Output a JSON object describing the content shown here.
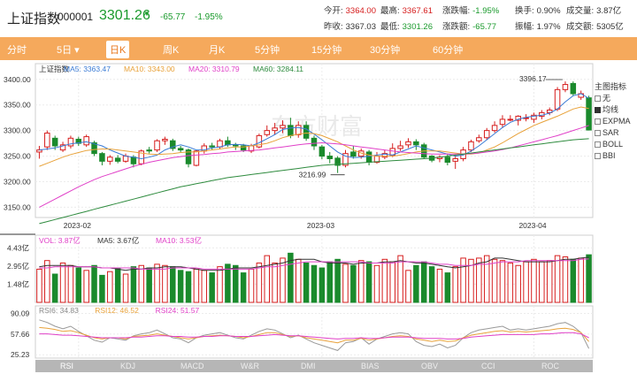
{
  "header": {
    "name": "上证指数",
    "code": "000001",
    "price": "3301.26",
    "change": "-65.77",
    "change_pct": "-1.95%",
    "stats_row1": [
      {
        "k": "今开:",
        "v": "3364.00",
        "c": "red"
      },
      {
        "k": "最高:",
        "v": "3367.61",
        "c": "red"
      },
      {
        "k": "涨跌幅:",
        "v": "-1.95%",
        "c": "green"
      },
      {
        "k": "换手:",
        "v": "0.90%",
        "c": "dark"
      },
      {
        "k": "成交量:",
        "v": "3.87亿",
        "c": "dark"
      }
    ],
    "stats_row2": [
      {
        "k": "昨收:",
        "v": "3367.03",
        "c": "dark"
      },
      {
        "k": "最低:",
        "v": "3301.26",
        "c": "green"
      },
      {
        "k": "涨跌额:",
        "v": "-65.77",
        "c": "green"
      },
      {
        "k": "振幅:",
        "v": "1.97%",
        "c": "dark"
      },
      {
        "k": "成交额:",
        "v": "5305亿",
        "c": "dark"
      }
    ]
  },
  "tabs": [
    "分时",
    "5日 ▾",
    "日K",
    "周K",
    "月K",
    "5分钟",
    "15分钟",
    "30分钟",
    "60分钟"
  ],
  "active_tab": 2,
  "main_legend": [
    {
      "t": "上证指数",
      "c": "#333333"
    },
    {
      "t": "MA5: 3363.47",
      "c": "#3a7bd5"
    },
    {
      "t": "MA10: 3343.00",
      "c": "#e8a23a"
    },
    {
      "t": "MA20: 3310.79",
      "c": "#e040c8"
    },
    {
      "t": "MA60: 3284.11",
      "c": "#2e8b3e"
    }
  ],
  "vol_legend": [
    {
      "t": "VOL: 3.87亿",
      "c": "#e040c8"
    },
    {
      "t": "MA5: 3.67亿",
      "c": "#333333"
    },
    {
      "t": "MA10: 3.53亿",
      "c": "#e040c8"
    }
  ],
  "rsi_legend": [
    {
      "t": "RSI6: 34.83",
      "c": "#888888"
    },
    {
      "t": "RSI12: 46.52",
      "c": "#e8a23a"
    },
    {
      "t": "RSI24: 51.57",
      "c": "#e040c8"
    }
  ],
  "price_ticks": [
    "3400.00",
    "3350.00",
    "3300.00",
    "3250.00",
    "3200.00",
    "3150.00"
  ],
  "vol_ticks": [
    "4.43亿",
    "2.95亿",
    "1.48亿"
  ],
  "rsi_ticks": [
    "90.09",
    "57.66",
    "25.23"
  ],
  "date_ticks": [
    "2023-02",
    "2023-03",
    "2023-04"
  ],
  "annotations": {
    "high": "3396.17",
    "low": "3216.99"
  },
  "watermark": "东方财富",
  "side_panel": {
    "title": "主图指标",
    "items": [
      {
        "label": "无",
        "on": false
      },
      {
        "label": "均线",
        "on": true
      },
      {
        "label": "EXPMA",
        "on": false
      },
      {
        "label": "SAR",
        "on": false
      },
      {
        "label": "BOLL",
        "on": false
      },
      {
        "label": "BBI",
        "on": false
      }
    ]
  },
  "indicator_tabs": [
    "RSI",
    "KDJ",
    "MACD",
    "W&R",
    "DMI",
    "BIAS",
    "OBV",
    "CCI",
    "ROC"
  ],
  "colors": {
    "up": "#d61e1e",
    "down": "#1a8a2c",
    "accent": "#f5a95c"
  },
  "chart_data": {
    "type": "candlestick",
    "ylim": [
      3130,
      3410
    ],
    "candles": [
      [
        3258,
        3262,
        3245,
        3270
      ],
      [
        3268,
        3295,
        3262,
        3300
      ],
      [
        3285,
        3270,
        3262,
        3290
      ],
      [
        3262,
        3272,
        3258,
        3278
      ],
      [
        3270,
        3285,
        3265,
        3290
      ],
      [
        3283,
        3275,
        3270,
        3288
      ],
      [
        3272,
        3288,
        3268,
        3292
      ],
      [
        3276,
        3255,
        3250,
        3280
      ],
      [
        3255,
        3240,
        3232,
        3258
      ],
      [
        3240,
        3248,
        3233,
        3252
      ],
      [
        3246,
        3240,
        3236,
        3252
      ],
      [
        3240,
        3250,
        3237,
        3255
      ],
      [
        3248,
        3235,
        3228,
        3252
      ],
      [
        3235,
        3260,
        3232,
        3263
      ],
      [
        3262,
        3260,
        3255,
        3268
      ],
      [
        3262,
        3280,
        3258,
        3283
      ],
      [
        3280,
        3283,
        3272,
        3288
      ],
      [
        3280,
        3265,
        3260,
        3284
      ],
      [
        3265,
        3262,
        3258,
        3270
      ],
      [
        3262,
        3235,
        3228,
        3265
      ],
      [
        3232,
        3260,
        3230,
        3262
      ],
      [
        3260,
        3270,
        3255,
        3275
      ],
      [
        3270,
        3268,
        3262,
        3276
      ],
      [
        3268,
        3280,
        3263,
        3284
      ],
      [
        3280,
        3272,
        3268,
        3288
      ],
      [
        3272,
        3270,
        3262,
        3276
      ],
      [
        3270,
        3262,
        3258,
        3274
      ],
      [
        3260,
        3270,
        3256,
        3274
      ],
      [
        3268,
        3290,
        3265,
        3294
      ],
      [
        3292,
        3300,
        3288,
        3310
      ],
      [
        3300,
        3305,
        3292,
        3315
      ],
      [
        3305,
        3310,
        3295,
        3320
      ],
      [
        3310,
        3290,
        3285,
        3325
      ],
      [
        3292,
        3310,
        3286,
        3318
      ],
      [
        3310,
        3285,
        3280,
        3318
      ],
      [
        3285,
        3270,
        3262,
        3290
      ],
      [
        3268,
        3250,
        3244,
        3272
      ],
      [
        3250,
        3245,
        3236,
        3258
      ],
      [
        3246,
        3232,
        3217,
        3250
      ],
      [
        3232,
        3255,
        3228,
        3262
      ],
      [
        3258,
        3250,
        3245,
        3270
      ],
      [
        3250,
        3260,
        3245,
        3265
      ],
      [
        3258,
        3238,
        3232,
        3262
      ],
      [
        3238,
        3250,
        3235,
        3258
      ],
      [
        3248,
        3255,
        3244,
        3262
      ],
      [
        3252,
        3265,
        3248,
        3275
      ],
      [
        3265,
        3270,
        3260,
        3280
      ],
      [
        3272,
        3278,
        3266,
        3285
      ],
      [
        3278,
        3272,
        3262,
        3283
      ],
      [
        3272,
        3248,
        3245,
        3276
      ],
      [
        3250,
        3242,
        3238,
        3252
      ],
      [
        3245,
        3248,
        3238,
        3252
      ],
      [
        3248,
        3238,
        3232,
        3255
      ],
      [
        3240,
        3245,
        3225,
        3252
      ],
      [
        3245,
        3262,
        3240,
        3268
      ],
      [
        3262,
        3278,
        3258,
        3282
      ],
      [
        3280,
        3286,
        3276,
        3292
      ],
      [
        3286,
        3300,
        3282,
        3305
      ],
      [
        3300,
        3310,
        3296,
        3318
      ],
      [
        3312,
        3322,
        3305,
        3330
      ],
      [
        3322,
        3322,
        3318,
        3330
      ],
      [
        3320,
        3328,
        3310,
        3330
      ],
      [
        3325,
        3325,
        3318,
        3332
      ],
      [
        3322,
        3330,
        3315,
        3335
      ],
      [
        3328,
        3335,
        3322,
        3340
      ],
      [
        3335,
        3340,
        3330,
        3345
      ],
      [
        3342,
        3380,
        3338,
        3385
      ],
      [
        3380,
        3390,
        3375,
        3396
      ],
      [
        3392,
        3372,
        3368,
        3396
      ],
      [
        3365,
        3372,
        3360,
        3378
      ],
      [
        3364,
        3301,
        3301,
        3368
      ]
    ],
    "ma5": [
      3262,
      3264,
      3266,
      3270,
      3274,
      3276,
      3278,
      3274,
      3270,
      3262,
      3256,
      3250,
      3248,
      3245,
      3248,
      3252,
      3262,
      3268,
      3272,
      3268,
      3262,
      3262,
      3266,
      3268,
      3272,
      3273,
      3272,
      3270,
      3276,
      3284,
      3292,
      3302,
      3305,
      3306,
      3303,
      3293,
      3282,
      3270,
      3258,
      3250,
      3247,
      3248,
      3250,
      3252,
      3254,
      3252,
      3258,
      3264,
      3270,
      3266,
      3262,
      3258,
      3254,
      3250,
      3252,
      3260,
      3270,
      3282,
      3294,
      3306,
      3316,
      3322,
      3326,
      3328,
      3330,
      3334,
      3342,
      3356,
      3368,
      3372,
      3363
    ],
    "ma10": [
      3230,
      3236,
      3242,
      3248,
      3253,
      3257,
      3261,
      3263,
      3264,
      3264,
      3262,
      3260,
      3258,
      3256,
      3254,
      3253,
      3254,
      3255,
      3257,
      3258,
      3258,
      3260,
      3262,
      3264,
      3266,
      3268,
      3268,
      3270,
      3272,
      3275,
      3280,
      3286,
      3290,
      3293,
      3295,
      3294,
      3290,
      3284,
      3278,
      3270,
      3262,
      3256,
      3252,
      3250,
      3250,
      3250,
      3252,
      3255,
      3258,
      3260,
      3260,
      3260,
      3258,
      3256,
      3254,
      3254,
      3256,
      3262,
      3268,
      3276,
      3285,
      3294,
      3302,
      3310,
      3316,
      3322,
      3328,
      3335,
      3342,
      3346,
      3343
    ],
    "ma20": [
      3150,
      3158,
      3166,
      3174,
      3182,
      3190,
      3197,
      3204,
      3210,
      3215,
      3220,
      3225,
      3230,
      3234,
      3238,
      3241,
      3244,
      3247,
      3249,
      3251,
      3252,
      3253,
      3255,
      3256,
      3258,
      3259,
      3260,
      3261,
      3262,
      3264,
      3266,
      3268,
      3270,
      3272,
      3274,
      3275,
      3276,
      3275,
      3274,
      3272,
      3270,
      3268,
      3266,
      3264,
      3262,
      3260,
      3258,
      3257,
      3256,
      3255,
      3254,
      3254,
      3254,
      3254,
      3254,
      3255,
      3256,
      3258,
      3260,
      3263,
      3266,
      3270,
      3274,
      3278,
      3282,
      3286,
      3290,
      3295,
      3300,
      3305,
      3310
    ],
    "ma60": [
      3118,
      3122,
      3126,
      3130,
      3134,
      3138,
      3142,
      3146,
      3150,
      3154,
      3158,
      3162,
      3166,
      3170,
      3174,
      3178,
      3182,
      3186,
      3190,
      3193,
      3196,
      3199,
      3202,
      3205,
      3208,
      3210,
      3212,
      3214,
      3216,
      3218,
      3220,
      3222,
      3224,
      3226,
      3228,
      3230,
      3232,
      3233,
      3234,
      3235,
      3236,
      3237,
      3238,
      3239,
      3240,
      3241,
      3242,
      3243,
      3244,
      3245,
      3246,
      3248,
      3250,
      3252,
      3254,
      3256,
      3258,
      3260,
      3262,
      3264,
      3266,
      3268,
      3270,
      3272,
      3274,
      3276,
      3278,
      3280,
      3282,
      3283,
      3284
    ],
    "volume_ylim": [
      0,
      4.6
    ],
    "volume": [
      2.7,
      3.4,
      2.3,
      3.2,
      3.0,
      2.8,
      2.6,
      3.0,
      2.2,
      2.5,
      2.8,
      2.3,
      2.9,
      3.0,
      2.8,
      3.1,
      3.0,
      2.9,
      2.6,
      2.5,
      2.7,
      2.6,
      2.4,
      2.9,
      3.1,
      3.0,
      2.4,
      2.7,
      3.2,
      3.8,
      3.2,
      3.6,
      4.0,
      3.5,
      3.2,
      3.0,
      2.8,
      3.3,
      3.5,
      3.1,
      3.0,
      3.4,
      3.3,
      3.0,
      3.5,
      3.3,
      3.8,
      2.6,
      3.0,
      3.3,
      2.9,
      2.7,
      2.4,
      2.9,
      3.6,
      3.5,
      3.6,
      3.8,
      3.5,
      3.4,
      3.2,
      3.0,
      3.3,
      3.5,
      3.3,
      3.4,
      3.8,
      3.7,
      3.5,
      3.6,
      3.87
    ],
    "vol_ma5": [
      2.9,
      3.0,
      3.0,
      3.0,
      3.0,
      2.9,
      2.9,
      2.9,
      2.8,
      2.8,
      2.7,
      2.6,
      2.7,
      2.7,
      2.8,
      2.8,
      2.9,
      2.9,
      2.9,
      2.8,
      2.7,
      2.6,
      2.6,
      2.6,
      2.7,
      2.8,
      2.8,
      2.8,
      2.9,
      3.0,
      3.1,
      3.2,
      3.4,
      3.5,
      3.5,
      3.5,
      3.3,
      3.2,
      3.2,
      3.2,
      3.1,
      3.2,
      3.2,
      3.2,
      3.3,
      3.3,
      3.4,
      3.3,
      3.2,
      3.2,
      3.1,
      3.0,
      2.9,
      2.8,
      2.9,
      3.0,
      3.2,
      3.3,
      3.6,
      3.6,
      3.5,
      3.4,
      3.3,
      3.3,
      3.3,
      3.3,
      3.4,
      3.5,
      3.5,
      3.6,
      3.67
    ],
    "vol_ma10": [
      2.8,
      2.8,
      2.9,
      2.9,
      2.9,
      2.9,
      2.9,
      2.9,
      2.8,
      2.8,
      2.8,
      2.8,
      2.8,
      2.7,
      2.7,
      2.7,
      2.7,
      2.8,
      2.8,
      2.8,
      2.8,
      2.7,
      2.7,
      2.7,
      2.7,
      2.7,
      2.7,
      2.7,
      2.8,
      2.9,
      2.9,
      3.0,
      3.1,
      3.2,
      3.3,
      3.3,
      3.3,
      3.3,
      3.3,
      3.3,
      3.3,
      3.3,
      3.2,
      3.2,
      3.2,
      3.2,
      3.3,
      3.3,
      3.3,
      3.3,
      3.2,
      3.1,
      3.1,
      3.0,
      3.0,
      3.0,
      3.1,
      3.1,
      3.2,
      3.3,
      3.3,
      3.3,
      3.4,
      3.4,
      3.4,
      3.4,
      3.4,
      3.4,
      3.4,
      3.5,
      3.53
    ],
    "rsi_ylim": [
      20,
      95
    ],
    "rsi6": [
      80,
      76,
      70,
      66,
      70,
      62,
      55,
      48,
      45,
      52,
      50,
      48,
      55,
      58,
      60,
      64,
      58,
      52,
      50,
      44,
      52,
      56,
      58,
      60,
      56,
      52,
      50,
      56,
      62,
      66,
      64,
      58,
      52,
      56,
      50,
      44,
      40,
      36,
      32,
      44,
      46,
      52,
      42,
      50,
      54,
      58,
      60,
      58,
      46,
      40,
      38,
      42,
      36,
      40,
      52,
      60,
      64,
      66,
      68,
      70,
      64,
      66,
      64,
      66,
      68,
      70,
      74,
      76,
      70,
      60,
      35
    ],
    "rsi12": [
      68,
      67,
      65,
      62,
      63,
      60,
      56,
      52,
      50,
      52,
      52,
      50,
      54,
      55,
      56,
      58,
      56,
      54,
      52,
      50,
      52,
      54,
      55,
      56,
      55,
      54,
      52,
      54,
      57,
      60,
      60,
      57,
      54,
      55,
      52,
      50,
      48,
      46,
      44,
      48,
      48,
      51,
      48,
      50,
      52,
      54,
      55,
      54,
      50,
      48,
      46,
      48,
      46,
      47,
      52,
      56,
      58,
      60,
      62,
      63,
      61,
      62,
      61,
      62,
      63,
      64,
      66,
      67,
      65,
      60,
      46
    ],
    "rsi24": [
      58,
      58,
      57,
      56,
      56,
      55,
      54,
      53,
      52,
      52,
      52,
      52,
      53,
      53,
      54,
      55,
      55,
      54,
      54,
      53,
      53,
      54,
      54,
      55,
      55,
      54,
      54,
      54,
      55,
      56,
      57,
      56,
      55,
      55,
      54,
      53,
      52,
      51,
      50,
      51,
      51,
      52,
      51,
      51,
      52,
      53,
      53,
      53,
      52,
      51,
      51,
      51,
      50,
      50,
      51,
      53,
      54,
      55,
      56,
      57,
      57,
      57,
      57,
      57,
      58,
      58,
      59,
      60,
      60,
      58,
      52
    ]
  }
}
